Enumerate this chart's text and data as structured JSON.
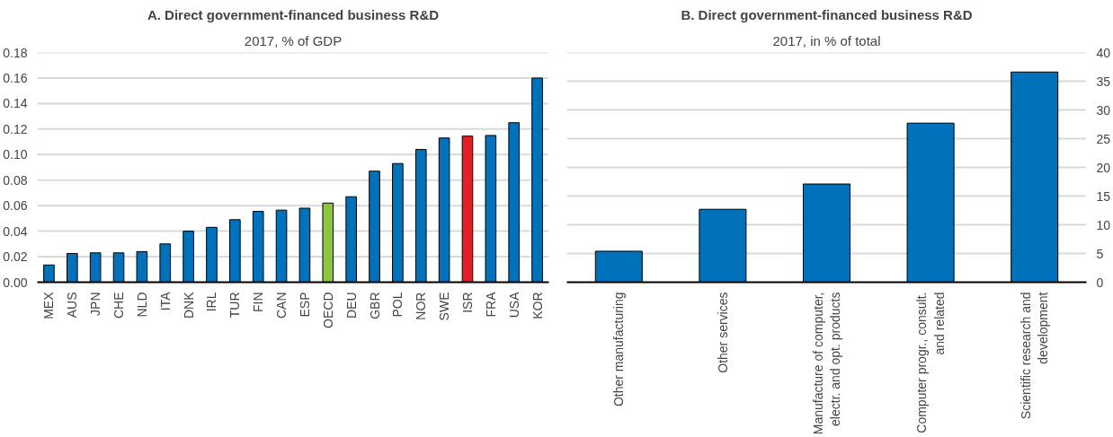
{
  "chart_data": [
    {
      "type": "bar",
      "title": "A. Direct government-financed business R&D",
      "subtitle": "2017, % of GDP",
      "categories": [
        "MEX",
        "AUS",
        "JPN",
        "CHE",
        "NLD",
        "ITA",
        "DNK",
        "IRL",
        "TUR",
        "FIN",
        "CAN",
        "ESP",
        "OECD",
        "DEU",
        "GBR",
        "POL",
        "NOR",
        "SWE",
        "ISR",
        "FRA",
        "USA",
        "KOR"
      ],
      "values": [
        0.0135,
        0.0225,
        0.023,
        0.023,
        0.024,
        0.03,
        0.04,
        0.043,
        0.049,
        0.0555,
        0.0565,
        0.058,
        0.062,
        0.067,
        0.087,
        0.093,
        0.104,
        0.113,
        0.1145,
        0.115,
        0.125,
        0.16
      ],
      "colors": [
        "#0072bc",
        "#0072bc",
        "#0072bc",
        "#0072bc",
        "#0072bc",
        "#0072bc",
        "#0072bc",
        "#0072bc",
        "#0072bc",
        "#0072bc",
        "#0072bc",
        "#0072bc",
        "#8cc63f",
        "#0072bc",
        "#0072bc",
        "#0072bc",
        "#0072bc",
        "#0072bc",
        "#e3202a",
        "#0072bc",
        "#0072bc",
        "#0072bc"
      ],
      "ylim": [
        0,
        0.18
      ],
      "yticks": [
        {
          "value": 0,
          "label": "0.00"
        },
        {
          "value": 0.02,
          "label": "0.02"
        },
        {
          "value": 0.04,
          "label": "0.04"
        },
        {
          "value": 0.06,
          "label": "0.06"
        },
        {
          "value": 0.08,
          "label": "0.08"
        },
        {
          "value": 0.1,
          "label": "0.10"
        },
        {
          "value": 0.12,
          "label": "0.12"
        },
        {
          "value": 0.14,
          "label": "0.14"
        },
        {
          "value": 0.16,
          "label": "0.16"
        },
        {
          "value": 0.18,
          "label": "0.18"
        }
      ],
      "grid": "y"
    },
    {
      "type": "bar",
      "title": "B. Direct government-financed business R&D",
      "subtitle": "2017, in % of total",
      "categories": [
        "Other manufacturing",
        "Other services",
        "Manufacture of computer,\nelectr. and opt. products",
        "Computer progr., consult.\nand related",
        "Scientific research and\ndevelopment"
      ],
      "values": [
        5.4,
        12.7,
        17.1,
        27.7,
        36.6
      ],
      "colors": [
        "#0072bc",
        "#0072bc",
        "#0072bc",
        "#0072bc",
        "#0072bc"
      ],
      "ylim": [
        0,
        40
      ],
      "yticks": [
        0,
        5,
        10,
        15,
        20,
        25,
        30,
        35,
        40
      ],
      "grid": "y"
    }
  ]
}
